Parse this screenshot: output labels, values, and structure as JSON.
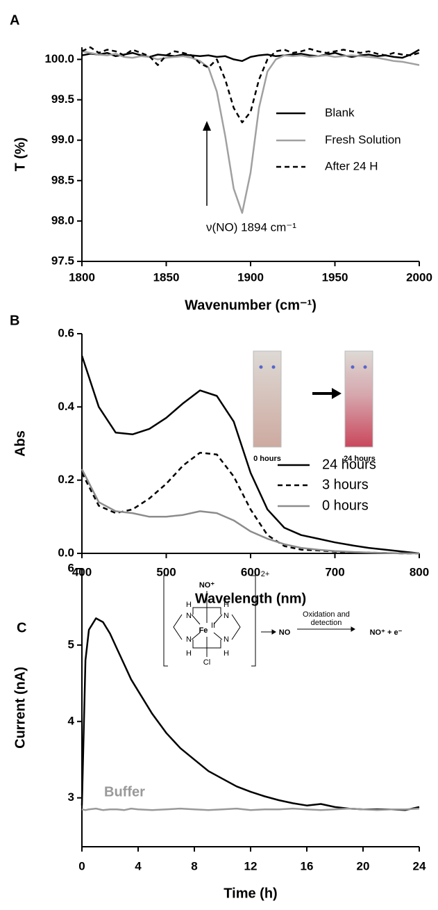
{
  "chart_data": [
    {
      "type": "line",
      "panel_label": "A",
      "x_label": "Wavenumber (cm⁻¹)",
      "y_label": "T (%)",
      "annotation": "ν(NO) 1894 cm⁻¹",
      "legend": "right",
      "grid": false,
      "xlim": [
        1800,
        2000
      ],
      "xticks": [
        1800,
        1850,
        1900,
        1950,
        2000
      ],
      "ylim": [
        97.5,
        100.15
      ],
      "yticks": [
        97.5,
        {
          "value": 98,
          "label": "98.0"
        },
        98.5,
        {
          "value": 99,
          "label": "99.0"
        },
        99.5,
        {
          "value": 100,
          "label": "100.0"
        }
      ],
      "x": [
        1800,
        1805,
        1810,
        1815,
        1820,
        1825,
        1830,
        1835,
        1840,
        1845,
        1850,
        1855,
        1860,
        1865,
        1870,
        1875,
        1880,
        1885,
        1890,
        1895,
        1900,
        1905,
        1910,
        1915,
        1920,
        1925,
        1930,
        1935,
        1940,
        1945,
        1950,
        1955,
        1960,
        1965,
        1970,
        1975,
        1980,
        1985,
        1990,
        1995,
        2000
      ],
      "series": [
        {
          "name": "Blank",
          "color": "#000000",
          "dash": false,
          "values": [
            100.05,
            100.07,
            100.06,
            100.08,
            100.04,
            100.06,
            100.08,
            100.05,
            100.03,
            100.06,
            100.05,
            100.04,
            100.06,
            100.05,
            100.04,
            100.05,
            100.03,
            100.04,
            100.0,
            99.98,
            100.03,
            100.05,
            100.06,
            100.04,
            100.05,
            100.06,
            100.07,
            100.05,
            100.04,
            100.06,
            100.08,
            100.05,
            100.03,
            100.05,
            100.06,
            100.04,
            100.05,
            100.03,
            100.02,
            100.06,
            100.12
          ]
        },
        {
          "name": "Fresh Solution",
          "color": "#a0a0a0",
          "dash": false,
          "values": [
            100.1,
            100.08,
            100.06,
            100.05,
            100.07,
            100.03,
            100.02,
            100.04,
            100.03,
            100.0,
            100.02,
            100.03,
            100.04,
            100.02,
            99.98,
            99.9,
            99.6,
            99.05,
            98.4,
            98.1,
            98.6,
            99.4,
            99.85,
            100.0,
            100.05,
            100.04,
            100.05,
            100.03,
            100.04,
            100.05,
            100.03,
            100.04,
            100.05,
            100.04,
            100.03,
            100.02,
            100.0,
            99.98,
            99.97,
            99.95,
            99.93
          ]
        },
        {
          "name": "After 24 H",
          "color": "#000000",
          "dash": true,
          "values": [
            100.1,
            100.15,
            100.08,
            100.12,
            100.1,
            100.05,
            100.12,
            100.08,
            100.04,
            99.93,
            100.05,
            100.1,
            100.08,
            100.05,
            99.95,
            99.9,
            100.0,
            99.75,
            99.4,
            99.22,
            99.35,
            99.75,
            100.0,
            100.1,
            100.12,
            100.08,
            100.1,
            100.13,
            100.1,
            100.08,
            100.1,
            100.12,
            100.1,
            100.08,
            100.1,
            100.07,
            100.05,
            100.08,
            100.06,
            100.05,
            100.08
          ]
        }
      ]
    },
    {
      "type": "line",
      "panel_label": "B",
      "x_label": "Wavelength (nm)",
      "y_label": "Abs",
      "inset_labels": [
        "0 hours",
        "24 hours"
      ],
      "legend": "right",
      "grid": false,
      "xlim": [
        400,
        800
      ],
      "xticks": [
        400,
        500,
        600,
        700,
        800
      ],
      "ylim": [
        0,
        0.6
      ],
      "yticks": [
        {
          "value": 0,
          "label": "0.0"
        },
        0.2,
        0.4,
        0.6
      ],
      "x": [
        400,
        420,
        440,
        460,
        480,
        500,
        520,
        540,
        560,
        580,
        600,
        620,
        640,
        660,
        680,
        700,
        720,
        740,
        760,
        780,
        800
      ],
      "series": [
        {
          "name": "24 hours",
          "color": "#000000",
          "dash": false,
          "values": [
            0.54,
            0.4,
            0.33,
            0.325,
            0.34,
            0.37,
            0.41,
            0.445,
            0.43,
            0.36,
            0.22,
            0.12,
            0.07,
            0.05,
            0.04,
            0.03,
            0.022,
            0.015,
            0.01,
            0.005,
            0.0
          ]
        },
        {
          "name": "3 hours",
          "color": "#000000",
          "dash": true,
          "values": [
            0.22,
            0.13,
            0.11,
            0.12,
            0.15,
            0.19,
            0.24,
            0.275,
            0.27,
            0.21,
            0.12,
            0.05,
            0.02,
            0.01,
            0.008,
            0.005,
            0.003,
            0.002,
            0.001,
            0.0,
            0.0
          ]
        },
        {
          "name": "0 hours",
          "color": "#8c8c8c",
          "dash": false,
          "values": [
            0.23,
            0.14,
            0.115,
            0.11,
            0.1,
            0.1,
            0.105,
            0.115,
            0.11,
            0.09,
            0.06,
            0.04,
            0.025,
            0.015,
            0.01,
            0.006,
            0.004,
            0.002,
            0.001,
            0.0,
            0.0
          ]
        }
      ]
    },
    {
      "type": "line",
      "panel_label": "C",
      "x_label": "Time (h)",
      "y_label": "Current (nA)",
      "legend": "inline",
      "grid": false,
      "scheme": [
        "NO⁺",
        "2+",
        "Fe",
        "II",
        "Cl",
        "H",
        "N",
        "N",
        "H",
        "H",
        "N",
        "N",
        "H",
        "NO",
        "Oxidation and",
        "detection",
        "NO⁺ + e⁻"
      ],
      "xlim": [
        0,
        24
      ],
      "xticks": [
        0,
        4,
        8,
        12,
        16,
        20,
        24
      ],
      "ylim": [
        2.36,
        6
      ],
      "yticks": [
        3,
        4,
        5,
        6
      ],
      "x": [
        0,
        0.25,
        0.5,
        1,
        1.5,
        2,
        2.5,
        3,
        3.5,
        4,
        5,
        6,
        7,
        8,
        9,
        10,
        11,
        12,
        13,
        14,
        15,
        16,
        17,
        18,
        19,
        20,
        21,
        22,
        23,
        24
      ],
      "series": [
        {
          "color": "#000000",
          "dash": false,
          "values": [
            2.9,
            4.8,
            5.2,
            5.35,
            5.3,
            5.15,
            4.95,
            4.75,
            4.55,
            4.4,
            4.1,
            3.85,
            3.65,
            3.5,
            3.35,
            3.25,
            3.15,
            3.08,
            3.02,
            2.97,
            2.93,
            2.9,
            2.92,
            2.88,
            2.86,
            2.85,
            2.85,
            2.85,
            2.84,
            2.88
          ]
        },
        {
          "name": "Buffer",
          "color": "#999999",
          "dash": false,
          "values": [
            2.85,
            2.84,
            2.85,
            2.86,
            2.84,
            2.85,
            2.85,
            2.84,
            2.86,
            2.85,
            2.84,
            2.85,
            2.86,
            2.85,
            2.84,
            2.85,
            2.86,
            2.84,
            2.85,
            2.85,
            2.86,
            2.85,
            2.84,
            2.85,
            2.86,
            2.85,
            2.84,
            2.85,
            2.85,
            2.86
          ]
        }
      ]
    }
  ]
}
